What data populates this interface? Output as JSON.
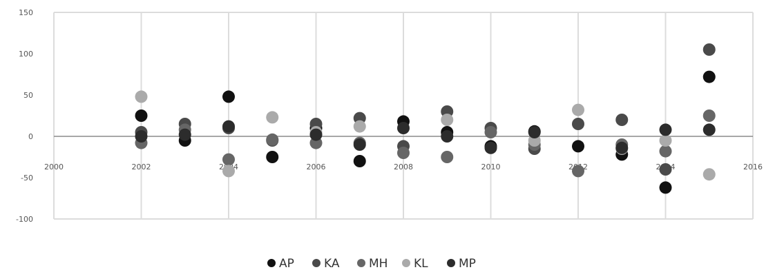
{
  "chart_data": {
    "type": "scatter",
    "title": "",
    "xlabel": "",
    "ylabel": "",
    "xlim": [
      2000,
      2016
    ],
    "ylim": [
      -100,
      150
    ],
    "x_ticks": [
      2000,
      2002,
      2004,
      2006,
      2008,
      2010,
      2012,
      2014,
      2016
    ],
    "y_ticks": [
      -100,
      -50,
      0,
      50,
      100,
      150
    ],
    "x_tick_labels": [
      "2000",
      "2002",
      "2004",
      "2006",
      "2008",
      "2010",
      "2012",
      "2014",
      "2016"
    ],
    "y_tick_labels": [
      "-100",
      "-50",
      "0",
      "50",
      "100",
      "150"
    ],
    "grid": "vertical",
    "legend_position": "bottom",
    "series": [
      {
        "name": "AP",
        "color": "#111111",
        "points": [
          [
            2002,
            25
          ],
          [
            2003,
            -5
          ],
          [
            2004,
            48
          ],
          [
            2005,
            -25
          ],
          [
            2006,
            10
          ],
          [
            2007,
            -30
          ],
          [
            2008,
            18
          ],
          [
            2009,
            5
          ],
          [
            2010,
            -12
          ],
          [
            2011,
            6
          ],
          [
            2012,
            -12
          ],
          [
            2013,
            -22
          ],
          [
            2014,
            -62
          ],
          [
            2015,
            72
          ]
        ]
      },
      {
        "name": "KA",
        "color": "#4a4a4a",
        "points": [
          [
            2002,
            5
          ],
          [
            2003,
            15
          ],
          [
            2004,
            10
          ],
          [
            2005,
            -5
          ],
          [
            2006,
            15
          ],
          [
            2007,
            22
          ],
          [
            2008,
            -12
          ],
          [
            2009,
            30
          ],
          [
            2010,
            10
          ],
          [
            2011,
            -15
          ],
          [
            2012,
            15
          ],
          [
            2013,
            20
          ],
          [
            2014,
            -40
          ],
          [
            2015,
            105
          ]
        ]
      },
      {
        "name": "MH",
        "color": "#666666",
        "points": [
          [
            2002,
            -8
          ],
          [
            2003,
            8
          ],
          [
            2004,
            -28
          ],
          [
            2005,
            -4
          ],
          [
            2006,
            -8
          ],
          [
            2007,
            -8
          ],
          [
            2008,
            -20
          ],
          [
            2009,
            -25
          ],
          [
            2010,
            5
          ],
          [
            2011,
            -10
          ],
          [
            2012,
            -42
          ],
          [
            2013,
            -10
          ],
          [
            2014,
            -18
          ],
          [
            2015,
            25
          ]
        ]
      },
      {
        "name": "KL",
        "color": "#aaaaaa",
        "points": [
          [
            2002,
            48
          ],
          [
            2004,
            -42
          ],
          [
            2005,
            23
          ],
          [
            2006,
            5
          ],
          [
            2007,
            12
          ],
          [
            2009,
            20
          ],
          [
            2011,
            -5
          ],
          [
            2012,
            32
          ],
          [
            2013,
            -15
          ],
          [
            2014,
            -5
          ],
          [
            2015,
            -46
          ]
        ]
      },
      {
        "name": "MP",
        "color": "#2c2c2c",
        "points": [
          [
            2002,
            0
          ],
          [
            2003,
            2
          ],
          [
            2004,
            12
          ],
          [
            2006,
            2
          ],
          [
            2007,
            -10
          ],
          [
            2008,
            10
          ],
          [
            2009,
            0
          ],
          [
            2010,
            -14
          ],
          [
            2011,
            5
          ],
          [
            2013,
            -14
          ],
          [
            2014,
            8
          ],
          [
            2015,
            8
          ]
        ]
      }
    ]
  }
}
